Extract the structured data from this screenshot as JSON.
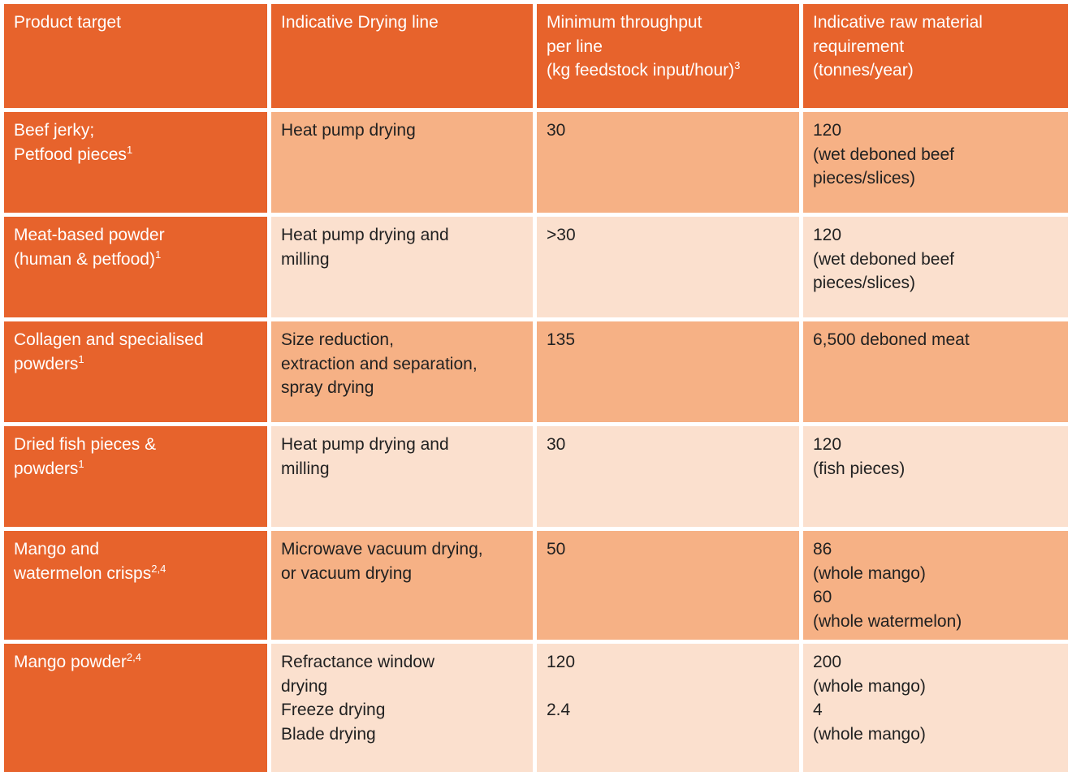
{
  "colors": {
    "header_and_first_column_bg": "#E7632C",
    "row_mid_bg": "#F6B185",
    "row_light_bg": "#FBE0CE",
    "header_text": "#FFFFFF",
    "body_text": "#212121",
    "grid_gap": "#FFFFFF"
  },
  "table": {
    "header": {
      "cells": [
        {
          "lines": [
            {
              "text": "Product target"
            }
          ]
        },
        {
          "lines": [
            {
              "text": "Indicative Drying line"
            }
          ]
        },
        {
          "lines": [
            {
              "text": "Minimum throughput"
            },
            {
              "text": "per line"
            },
            {
              "text": "(kg feedstock input/hour)",
              "sup": "3"
            }
          ]
        },
        {
          "lines": [
            {
              "text": "Indicative raw material"
            },
            {
              "text": "requirement"
            },
            {
              "text": "(tonnes/year)"
            }
          ]
        }
      ]
    },
    "rows": [
      {
        "cells": [
          {
            "lines": [
              {
                "text": "Beef jerky;"
              },
              {
                "text": "Petfood pieces",
                "sup": "1"
              }
            ]
          },
          {
            "lines": [
              {
                "text": "Heat pump drying"
              }
            ]
          },
          {
            "lines": [
              {
                "text": "30"
              }
            ]
          },
          {
            "lines": [
              {
                "text": "120"
              },
              {
                "text": "(wet deboned beef"
              },
              {
                "text": "pieces/slices)"
              }
            ]
          }
        ]
      },
      {
        "cells": [
          {
            "lines": [
              {
                "text": "Meat-based powder"
              },
              {
                "text": "(human & petfood)",
                "sup": "1"
              }
            ]
          },
          {
            "lines": [
              {
                "text": "Heat pump drying and"
              },
              {
                "text": "milling"
              }
            ]
          },
          {
            "lines": [
              {
                "text": ">30"
              }
            ]
          },
          {
            "lines": [
              {
                "text": "120"
              },
              {
                "text": "(wet deboned beef"
              },
              {
                "text": "pieces/slices)"
              }
            ]
          }
        ]
      },
      {
        "cells": [
          {
            "lines": [
              {
                "text": "Collagen and specialised"
              },
              {
                "text": "powders",
                "sup": "1"
              }
            ]
          },
          {
            "lines": [
              {
                "text": "Size reduction,"
              },
              {
                "text": "extraction and separation,"
              },
              {
                "text": "spray drying"
              }
            ]
          },
          {
            "lines": [
              {
                "text": "135"
              }
            ]
          },
          {
            "lines": [
              {
                "text": "6,500 deboned meat"
              }
            ]
          }
        ]
      },
      {
        "cells": [
          {
            "lines": [
              {
                "text": "Dried fish pieces &"
              },
              {
                "text": "powders",
                "sup": "1"
              }
            ]
          },
          {
            "lines": [
              {
                "text": "Heat pump drying and"
              },
              {
                "text": "milling"
              }
            ]
          },
          {
            "lines": [
              {
                "text": "30"
              }
            ]
          },
          {
            "lines": [
              {
                "text": "120"
              },
              {
                "text": "(fish pieces)"
              }
            ]
          }
        ]
      },
      {
        "cells": [
          {
            "lines": [
              {
                "text": "Mango and"
              },
              {
                "text": "watermelon crisps",
                "sup": "2,4"
              }
            ]
          },
          {
            "lines": [
              {
                "text": "Microwave vacuum drying,"
              },
              {
                "text": "or vacuum drying"
              }
            ]
          },
          {
            "lines": [
              {
                "text": "50"
              }
            ]
          },
          {
            "lines": [
              {
                "text": "86"
              },
              {
                "text": "(whole mango)"
              },
              {
                "text": "60"
              },
              {
                "text": "(whole watermelon)"
              }
            ]
          }
        ]
      },
      {
        "cells": [
          {
            "lines": [
              {
                "text": "Mango powder",
                "sup": "2,4"
              }
            ]
          },
          {
            "lines": [
              {
                "text": "Refractance window"
              },
              {
                "text": "drying"
              },
              {
                "text": "Freeze drying"
              },
              {
                "text": "Blade drying"
              }
            ]
          },
          {
            "lines": [
              {
                "text": "120"
              },
              {
                "text": ""
              },
              {
                "text": "2.4"
              }
            ]
          },
          {
            "lines": [
              {
                "text": "200"
              },
              {
                "text": "(whole mango)"
              },
              {
                "text": "4"
              },
              {
                "text": "(whole mango)"
              }
            ]
          }
        ]
      }
    ]
  }
}
